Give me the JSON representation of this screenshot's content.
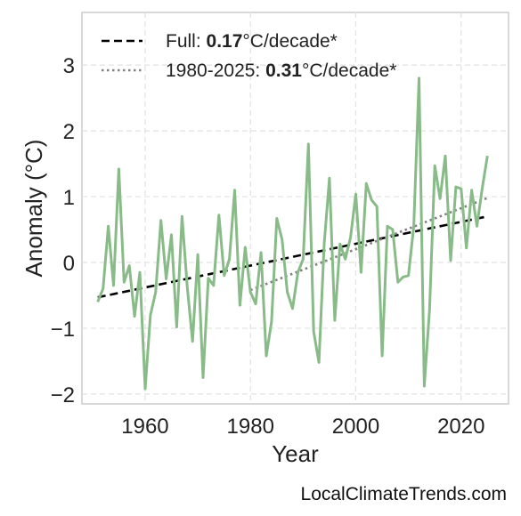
{
  "chart_data": {
    "type": "line",
    "title": "",
    "xlabel": "Year",
    "ylabel": "Anomaly (°C)",
    "xlim": [
      1948,
      2029
    ],
    "ylim": [
      -2.15,
      3.8
    ],
    "x_ticks": [
      1960,
      1980,
      2000,
      2020
    ],
    "y_ticks": [
      -2,
      -1,
      0,
      1,
      2,
      3
    ],
    "y_tick_labels": [
      "−2",
      "−1",
      "0",
      "1",
      "2",
      "3"
    ],
    "grid": true,
    "legend_position": "top-left",
    "series": [
      {
        "name": "",
        "color": "#88bb88",
        "x": [
          1951,
          1952,
          1953,
          1954,
          1955,
          1956,
          1957,
          1958,
          1959,
          1960,
          1961,
          1962,
          1963,
          1964,
          1965,
          1966,
          1967,
          1968,
          1969,
          1970,
          1971,
          1972,
          1973,
          1974,
          1975,
          1976,
          1977,
          1978,
          1979,
          1980,
          1981,
          1982,
          1983,
          1984,
          1985,
          1986,
          1987,
          1988,
          1989,
          1990,
          1991,
          1992,
          1993,
          1994,
          1995,
          1996,
          1997,
          1998,
          1999,
          2000,
          2001,
          2002,
          2003,
          2004,
          2005,
          2006,
          2007,
          2008,
          2009,
          2010,
          2011,
          2012,
          2013,
          2014,
          2015,
          2016,
          2017,
          2018,
          2019,
          2020,
          2021,
          2022,
          2023,
          2024,
          2025
        ],
        "values": [
          -0.6,
          -0.4,
          0.55,
          -0.35,
          1.42,
          -0.3,
          -0.05,
          -0.82,
          -0.15,
          -1.92,
          -0.8,
          -0.45,
          0.64,
          -0.25,
          0.42,
          -0.98,
          0.7,
          -0.38,
          -1.2,
          0.12,
          -1.75,
          -0.24,
          -0.35,
          0.72,
          -0.2,
          0.05,
          1.1,
          -0.65,
          0.23,
          -0.45,
          -0.63,
          0.15,
          -1.42,
          -0.9,
          0.67,
          0.35,
          -0.45,
          -0.7,
          -0.15,
          0.05,
          1.8,
          -1.05,
          -1.52,
          0.28,
          1.28,
          -0.88,
          0.28,
          0.05,
          0.38,
          1.04,
          -0.15,
          1.2,
          0.95,
          0.85,
          -1.42,
          0.55,
          0.5,
          -0.3,
          -0.22,
          -0.2,
          0.55,
          2.8,
          -1.88,
          -0.72,
          1.47,
          0.97,
          1.62,
          0.03,
          1.15,
          1.12,
          0.22,
          1.1,
          0.55,
          1.12,
          1.62
        ]
      }
    ],
    "trends": [
      {
        "label": "Full: ",
        "value_bold": "0.17",
        "unit": "°C/decade*",
        "style": "dashed",
        "color": "#000000",
        "x": [
          1951,
          2025
        ],
        "y": [
          -0.53,
          0.7
        ]
      },
      {
        "label": "1980-2025: ",
        "value_bold": "0.31",
        "unit": "°C/decade*",
        "style": "dotted",
        "color": "#808080",
        "x": [
          1980,
          2025
        ],
        "y": [
          -0.42,
          0.98
        ]
      }
    ]
  },
  "watermark": "LocalClimateTrends.com"
}
